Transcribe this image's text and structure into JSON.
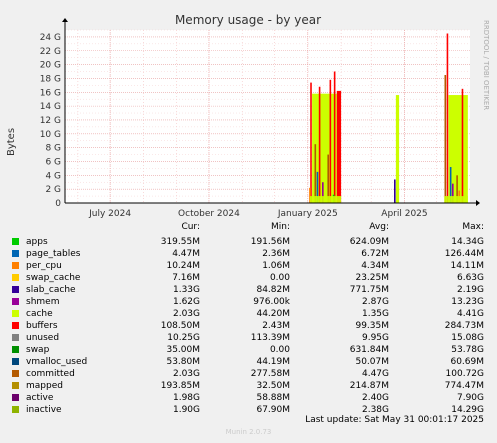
{
  "chart_data": {
    "type": "area",
    "title": "Memory usage - by year",
    "ylabel": "Bytes",
    "side_label": "RRDTOOL / TOBI OETIKER",
    "ylim": [
      0,
      25
    ],
    "y_ticks": [
      0,
      2,
      4,
      6,
      8,
      10,
      12,
      14,
      16,
      18,
      20,
      22,
      24
    ],
    "y_tick_labels": [
      "0",
      "2 G",
      "4 G",
      "6 G",
      "8 G",
      "10 G",
      "12 G",
      "14 G",
      "16 G",
      "18 G",
      "20 G",
      "22 G",
      "24 G"
    ],
    "x_tick_labels": [
      "July 2024",
      "October 2024",
      "January 2025",
      "April 2025"
    ],
    "x_tick_dates": [
      "2024-07-01",
      "2024-10-01",
      "2025-01-01",
      "2025-04-01"
    ],
    "x_range": [
      "2024-05-20",
      "2025-06-01"
    ],
    "grid": true,
    "series": [
      {
        "name": "apps",
        "color": "#00cc00",
        "cur": "319.55M",
        "min": "191.56M",
        "avg": "624.09M",
        "max": "14.34G"
      },
      {
        "name": "page_tables",
        "color": "#0066b3",
        "cur": "4.47M",
        "min": "2.36M",
        "avg": "6.72M",
        "max": "126.44M"
      },
      {
        "name": "per_cpu",
        "color": "#ff8000",
        "cur": "10.24M",
        "min": "1.06M",
        "avg": "4.34M",
        "max": "14.11M"
      },
      {
        "name": "swap_cache",
        "color": "#ffcc00",
        "cur": "7.16M",
        "min": "0.00",
        "avg": "23.25M",
        "max": "6.63G"
      },
      {
        "name": "slab_cache",
        "color": "#330099",
        "cur": "1.33G",
        "min": "84.82M",
        "avg": "771.75M",
        "max": "2.19G"
      },
      {
        "name": "shmem",
        "color": "#990099",
        "cur": "1.62G",
        "min": "976.00k",
        "avg": "2.87G",
        "max": "13.23G"
      },
      {
        "name": "cache",
        "color": "#ccff00",
        "cur": "2.03G",
        "min": "44.20M",
        "avg": "1.35G",
        "max": "4.41G"
      },
      {
        "name": "buffers",
        "color": "#ff0000",
        "cur": "108.50M",
        "min": "2.43M",
        "avg": "99.35M",
        "max": "284.73M"
      },
      {
        "name": "unused",
        "color": "#808080",
        "cur": "10.25G",
        "min": "113.39M",
        "avg": "9.95G",
        "max": "15.08G"
      },
      {
        "name": "swap",
        "color": "#008f00",
        "cur": "35.00M",
        "min": "0.00",
        "avg": "631.84M",
        "max": "53.78G"
      },
      {
        "name": "vmalloc_used",
        "color": "#00487d",
        "cur": "53.80M",
        "min": "44.19M",
        "avg": "50.07M",
        "max": "60.69M"
      },
      {
        "name": "committed",
        "color": "#b35a00",
        "cur": "2.03G",
        "min": "277.58M",
        "avg": "4.47G",
        "max": "100.72G"
      },
      {
        "name": "mapped",
        "color": "#b38f00",
        "cur": "193.85M",
        "min": "32.50M",
        "avg": "214.87M",
        "max": "774.47M"
      },
      {
        "name": "active",
        "color": "#6b006b",
        "cur": "1.98G",
        "min": "58.88M",
        "avg": "2.40G",
        "max": "7.90G"
      },
      {
        "name": "inactive",
        "color": "#8fb300",
        "cur": "1.90G",
        "min": "67.90M",
        "avg": "2.38G",
        "max": "14.29G"
      }
    ]
  },
  "legend": {
    "cur_label": "Cur:",
    "min_label": "Min:",
    "avg_label": "Avg:",
    "max_label": "Max:"
  },
  "footer": {
    "last_update": "Last update: Sat May 31 00:01:17 2025",
    "munin_version": "Munin 2.0.73"
  }
}
